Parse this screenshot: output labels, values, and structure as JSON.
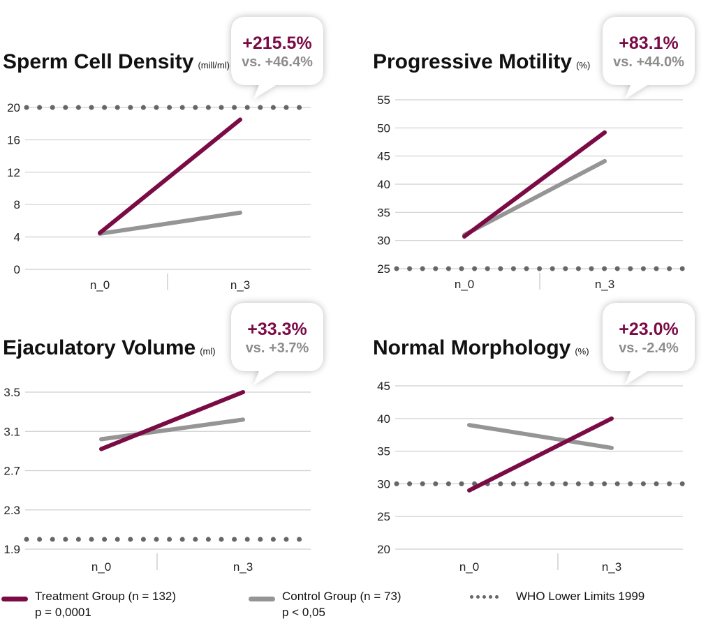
{
  "colors": {
    "treatment": "#7a0b45",
    "control": "#959595",
    "who": "#666666",
    "grid": "#cfcfcf"
  },
  "chart_data": [
    {
      "type": "line",
      "title": "Sperm Cell Density",
      "unit": "(mill/ml)",
      "categories": [
        "n_0",
        "n_3"
      ],
      "y_ticks": [
        "0",
        "4",
        "8",
        "12",
        "16",
        "20"
      ],
      "ylim": [
        0,
        20
      ],
      "series": [
        {
          "name": "Treatment Group (n = 132)",
          "values": [
            4.5,
            18.5
          ]
        },
        {
          "name": "Control Group (n = 73)",
          "values": [
            4.4,
            7.0
          ]
        }
      ],
      "who_limit": 20,
      "bubble": {
        "change": "+215.5%",
        "vs": "vs. +46.4%"
      }
    },
    {
      "type": "line",
      "title": "Progressive Motility",
      "unit": "(%)",
      "categories": [
        "n_0",
        "n_3"
      ],
      "y_ticks": [
        "25",
        "30",
        "35",
        "40",
        "45",
        "50",
        "55"
      ],
      "ylim": [
        25,
        55
      ],
      "series": [
        {
          "name": "Treatment Group (n = 132)",
          "values": [
            30.7,
            49.2
          ]
        },
        {
          "name": "Control Group (n = 73)",
          "values": [
            31.0,
            44.1
          ]
        }
      ],
      "who_limit": 25,
      "bubble": {
        "change": "+83.1%",
        "vs": "vs. +44.0%"
      }
    },
    {
      "type": "line",
      "title": "Ejaculatory Volume",
      "unit": "(ml)",
      "categories": [
        "n_0",
        "n_3"
      ],
      "y_ticks": [
        "1.9",
        "2.3",
        "2.7",
        "3.1",
        "3.5"
      ],
      "ylim": [
        1.9,
        3.5
      ],
      "series": [
        {
          "name": "Treatment Group (n = 132)",
          "values": [
            2.92,
            3.5
          ]
        },
        {
          "name": "Control Group (n = 73)",
          "values": [
            3.02,
            3.22
          ]
        }
      ],
      "who_limit": 2.0,
      "bubble": {
        "change": "+33.3%",
        "vs": "vs. +3.7%"
      }
    },
    {
      "type": "line",
      "title": "Normal Morphology",
      "unit": "(%)",
      "categories": [
        "n_0",
        "n_3"
      ],
      "y_ticks": [
        "20",
        "25",
        "30",
        "35",
        "40",
        "45"
      ],
      "ylim": [
        20,
        45
      ],
      "series": [
        {
          "name": "Treatment Group (n = 132)",
          "values": [
            29.0,
            40.0
          ]
        },
        {
          "name": "Control Group (n = 73)",
          "values": [
            39.0,
            35.5
          ]
        }
      ],
      "who_limit": 30,
      "bubble": {
        "change": "+23.0%",
        "vs": "vs. -2.4%"
      }
    }
  ],
  "legend": {
    "treatment_label": "Treatment Group (n = 132)",
    "treatment_p": "p = 0,0001",
    "control_label": "Control Group (n = 73)",
    "control_p": "p < 0,05",
    "who_label": "WHO Lower Limits 1999"
  }
}
